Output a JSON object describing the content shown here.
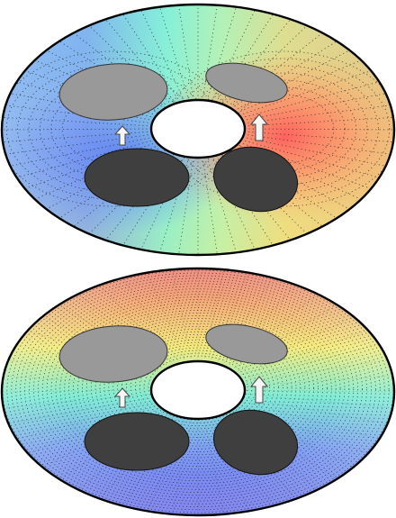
{
  "panels": [
    {
      "id": "top",
      "field": "dipole",
      "colors": {
        "left": "#7aa7ff",
        "center_top": "#8ef5d0",
        "center_bottom": "#c3f2a8",
        "right_hot": "#ff6e6e",
        "right_mid": "#ffb36b",
        "right_low": "#ffe27a",
        "left_deep": "#5e7ff2"
      }
    },
    {
      "id": "bottom",
      "field": "radial",
      "colors": {
        "outer_top": "#f07a7a",
        "mid_top": "#f6e67c",
        "inner": "#7fe8cf",
        "bottom": "#6f6cf0",
        "bottom_mid": "#7f97f5"
      }
    }
  ],
  "object_colors": {
    "light_ellipse": "#9a9a9a",
    "dark_ellipse": "#3f3f3f",
    "arrow": "#f5f5f5",
    "outline": "#000000",
    "hole": "#ffffff"
  },
  "icons": {
    "up_arrow": "up-arrow-icon"
  }
}
